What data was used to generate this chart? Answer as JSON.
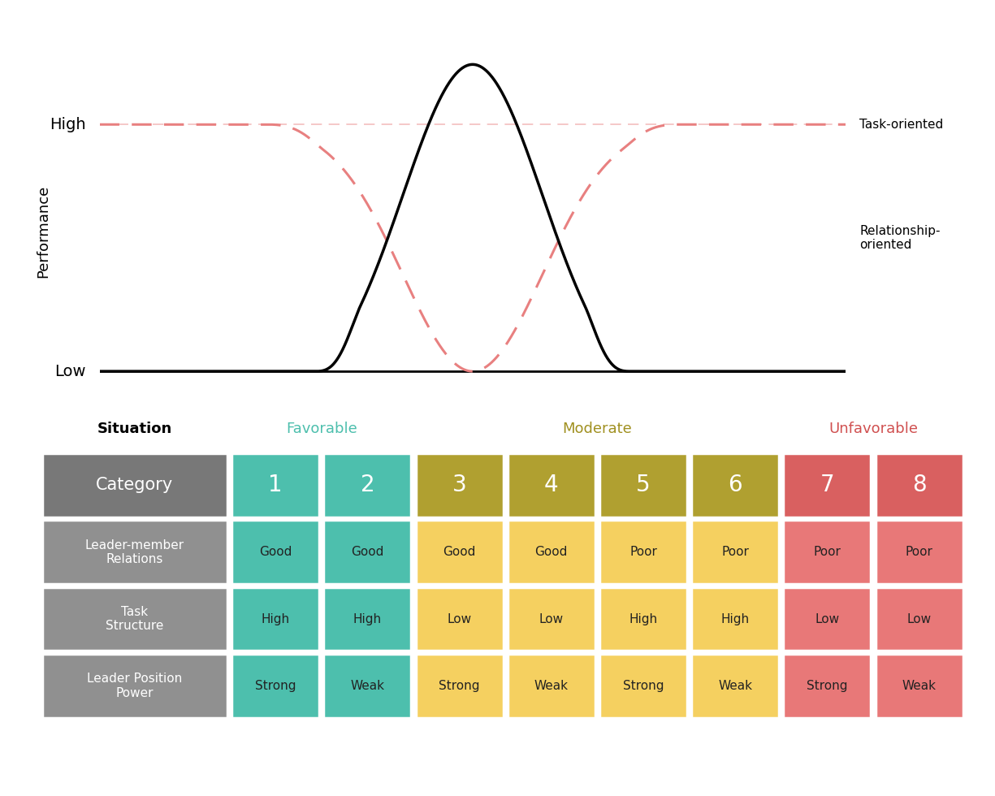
{
  "situation_label": "Situation",
  "favorable_label": "Favorable",
  "moderate_label": "Moderate",
  "unfavorable_label": "Unfavorable",
  "category_label": "Category",
  "performance_label": "Performance",
  "high_label": "High",
  "low_label": "Low",
  "task_oriented_label": "Task-oriented",
  "relationship_oriented_label": "Relationship-\noriented",
  "categories": [
    "1",
    "2",
    "3",
    "4",
    "5",
    "6",
    "7",
    "8"
  ],
  "row_headers": [
    "Leader-member\nRelations",
    "Task\nStructure",
    "Leader Position\nPower"
  ],
  "table_data": [
    [
      "Good",
      "Good",
      "Good",
      "Good",
      "Poor",
      "Poor",
      "Poor",
      "Poor"
    ],
    [
      "High",
      "High",
      "Low",
      "Low",
      "High",
      "High",
      "Low",
      "Low"
    ],
    [
      "Strong",
      "Weak",
      "Strong",
      "Weak",
      "Strong",
      "Weak",
      "Strong",
      "Weak"
    ]
  ],
  "color_teal_header": "#4DBFAD",
  "color_olive_header": "#B0A030",
  "color_yellow": "#F5D060",
  "color_red_cell": "#E87878",
  "color_red_header": "#D96060",
  "color_gray_header": "#787878",
  "color_gray_row": "#909090",
  "dashed_color": "#E88080",
  "favorable_color": "#4DBFAD",
  "moderate_color": "#A09020",
  "unfavorable_color": "#D05050",
  "header_colors": [
    "#4DBFAD",
    "#4DBFAD",
    "#B0A030",
    "#B0A030",
    "#B0A030",
    "#B0A030",
    "#D96060",
    "#D96060"
  ],
  "row_bg_colors": [
    [
      "#4DBFAD",
      "#4DBFAD",
      "#F5D060",
      "#F5D060",
      "#F5D060",
      "#F5D060",
      "#E87878",
      "#E87878"
    ],
    [
      "#4DBFAD",
      "#4DBFAD",
      "#F5D060",
      "#F5D060",
      "#F5D060",
      "#F5D060",
      "#E87878",
      "#E87878"
    ],
    [
      "#4DBFAD",
      "#4DBFAD",
      "#F5D060",
      "#F5D060",
      "#F5D060",
      "#F5D060",
      "#E87878",
      "#E87878"
    ]
  ]
}
